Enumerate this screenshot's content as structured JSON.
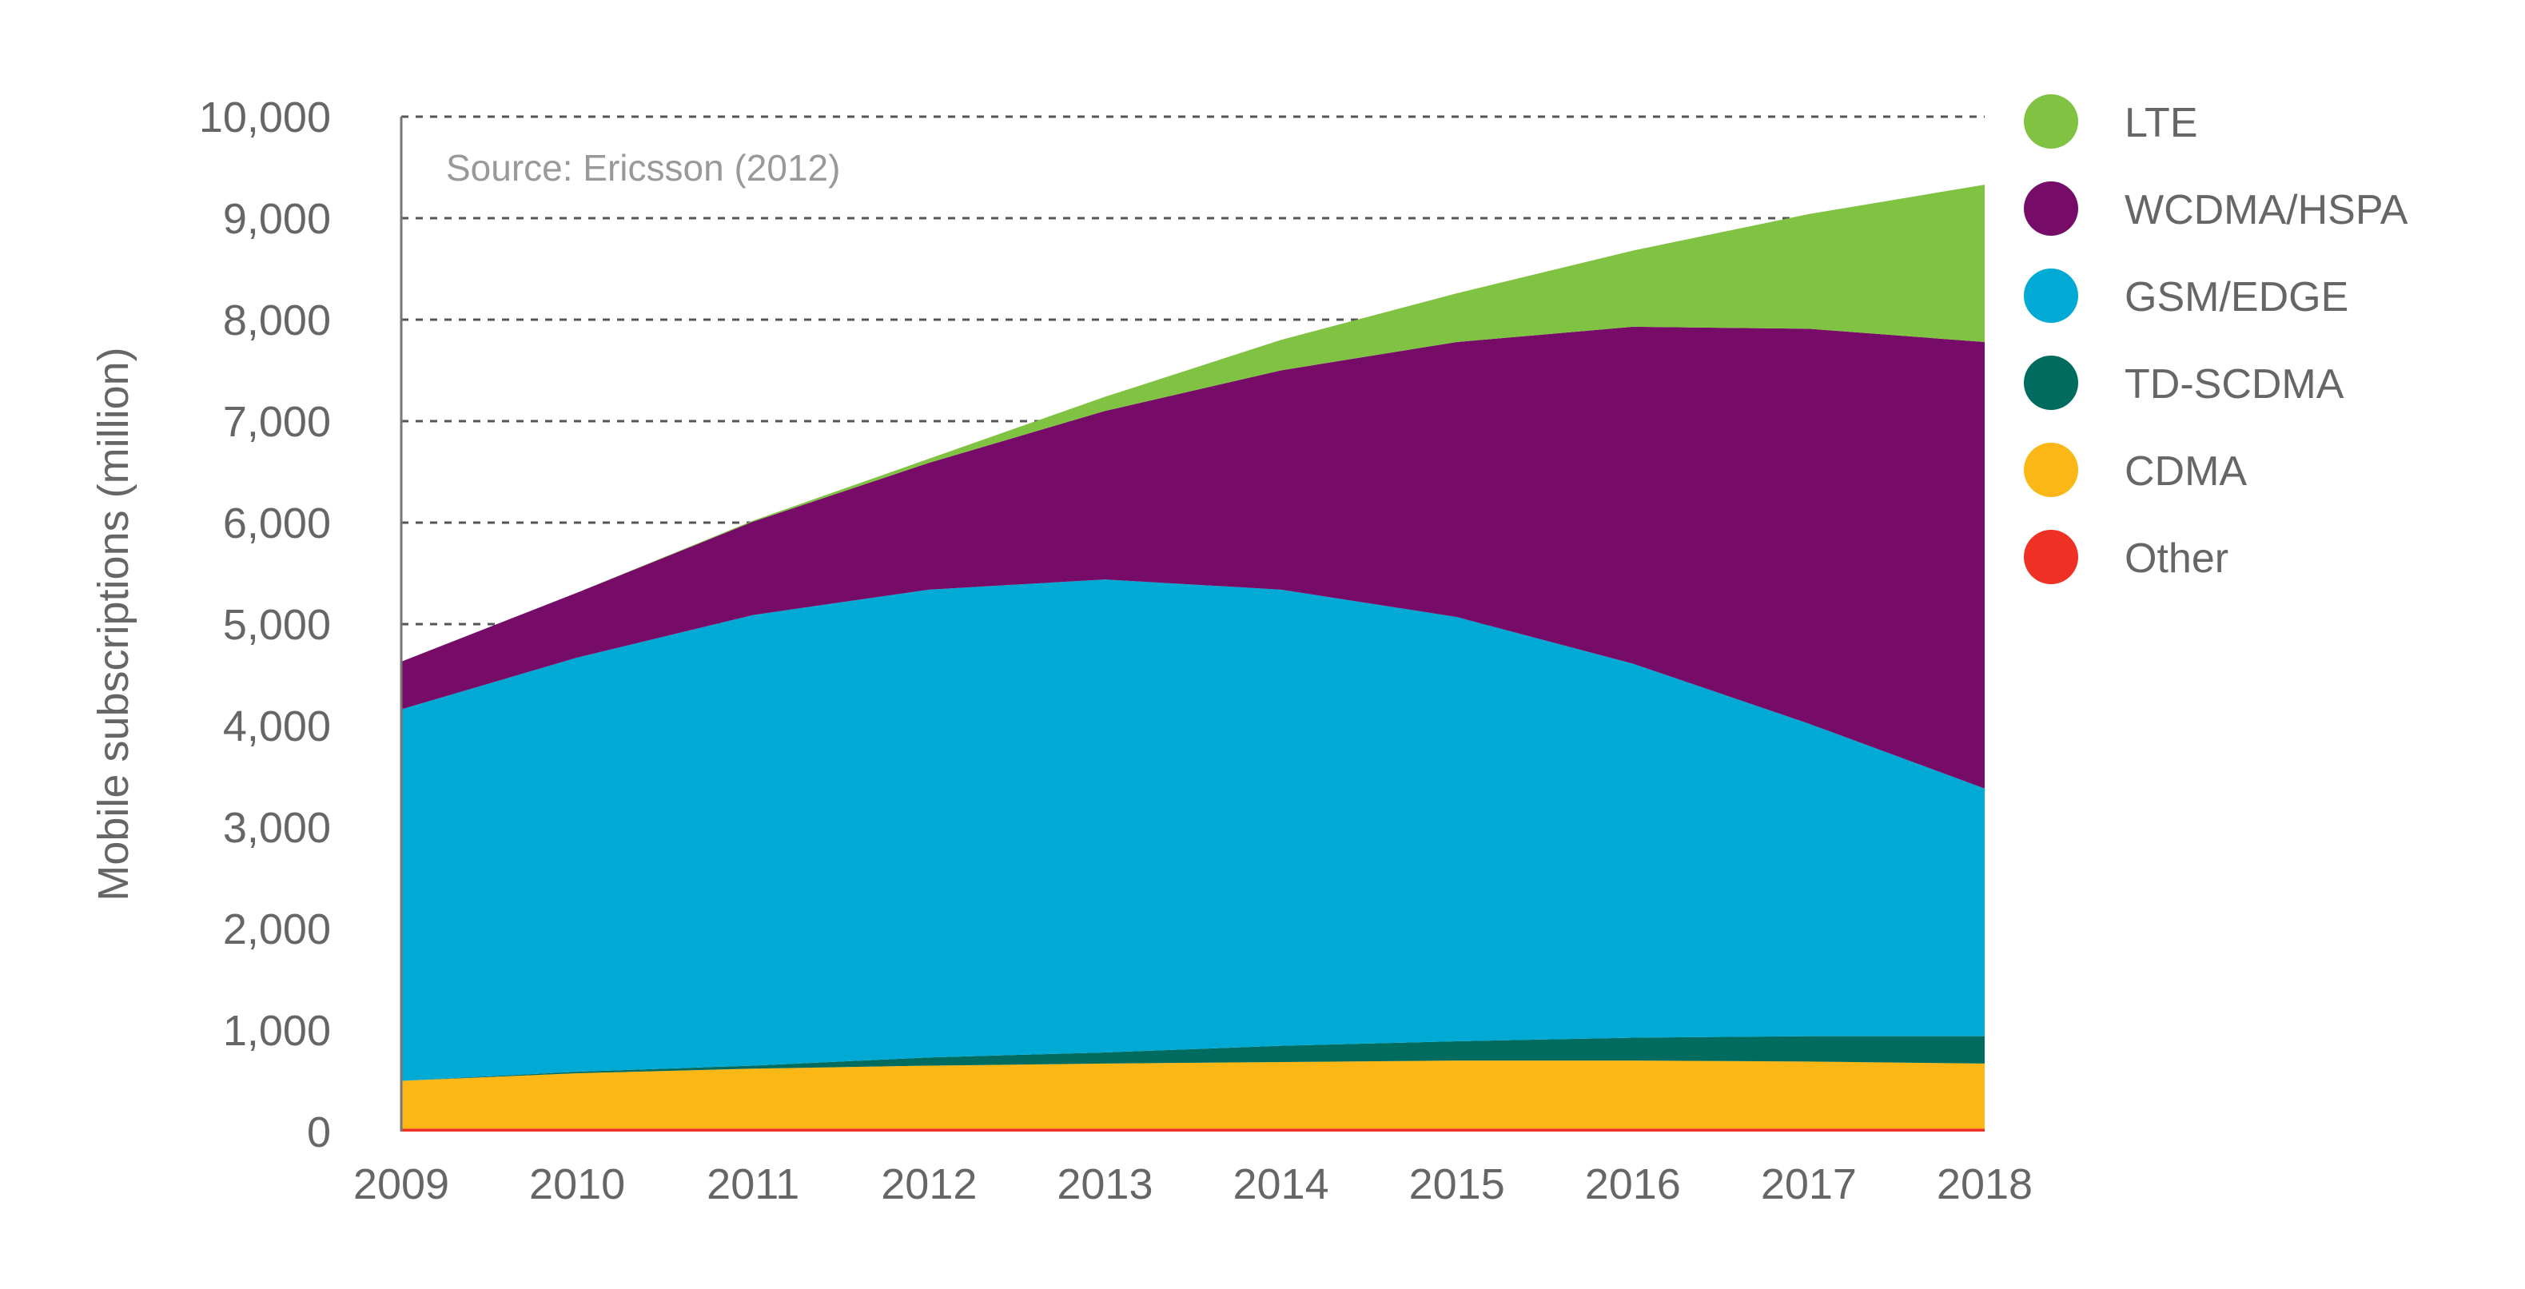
{
  "chart_data": {
    "type": "area",
    "stacked": true,
    "title": "",
    "annotation": "Source: Ericsson (2012)",
    "xlabel": "",
    "ylabel": "Mobile subscriptions (million)",
    "ylim": [
      0,
      10000
    ],
    "yticks": [
      0,
      1000,
      2000,
      3000,
      4000,
      5000,
      6000,
      7000,
      8000,
      9000,
      10000
    ],
    "ytick_labels": [
      "0",
      "1,000",
      "2,000",
      "3,000",
      "4,000",
      "5,000",
      "6,000",
      "7,000",
      "8,000",
      "9,000",
      "10,000"
    ],
    "categories": [
      "2009",
      "2010",
      "2011",
      "2012",
      "2013",
      "2014",
      "2015",
      "2016",
      "2017",
      "2018"
    ],
    "grid": "horizontal dashed",
    "legend_position": "right",
    "series": [
      {
        "name": "Other",
        "color": "#ee3124",
        "values": [
          30,
          30,
          30,
          30,
          30,
          30,
          30,
          30,
          30,
          30
        ]
      },
      {
        "name": "CDMA",
        "color": "#fbb716",
        "values": [
          470,
          545,
          590,
          620,
          640,
          655,
          670,
          670,
          660,
          640
        ]
      },
      {
        "name": "TD-SCDMA",
        "color": "#006b5f",
        "values": [
          0,
          15,
          30,
          80,
          110,
          160,
          190,
          225,
          250,
          270
        ]
      },
      {
        "name": "GSM/EDGE",
        "color": "#00aad5",
        "values": [
          3660,
          4080,
          4440,
          4610,
          4660,
          4495,
          4180,
          3685,
          3080,
          2440
        ]
      },
      {
        "name": "WCDMA/HSPA",
        "color": "#760c68",
        "values": [
          470,
          640,
          920,
          1250,
          1660,
          2160,
          2710,
          3320,
          3890,
          4400
        ]
      },
      {
        "name": "LTE",
        "color": "#80c242",
        "values": [
          0,
          0,
          10,
          40,
          140,
          300,
          480,
          750,
          1130,
          1550
        ]
      }
    ],
    "legend_order": [
      "LTE",
      "WCDMA/HSPA",
      "GSM/EDGE",
      "TD-SCDMA",
      "CDMA",
      "Other"
    ]
  }
}
